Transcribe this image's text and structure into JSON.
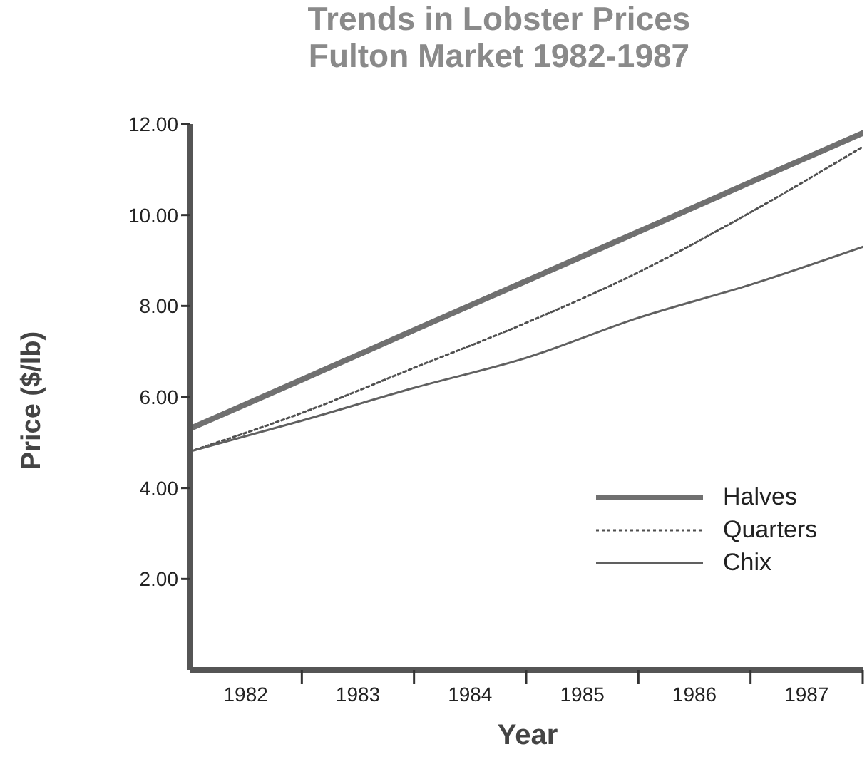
{
  "chart_data": {
    "type": "line",
    "title": "Trends in Lobster Prices",
    "subtitle": "Fulton Market  1982-1987",
    "xlabel": "Year",
    "ylabel": "Price ($/lb)",
    "x": [
      1982,
      1983,
      1984,
      1985,
      1986,
      1987,
      1988
    ],
    "series": [
      {
        "name": "Halves",
        "color": "#707070",
        "line_style": "solid",
        "values": [
          5.3,
          6.38,
          7.47,
          8.55,
          9.63,
          10.72,
          11.8
        ]
      },
      {
        "name": "Quarters",
        "color": "#505050",
        "line_style": "dotted",
        "values": [
          4.8,
          5.65,
          6.64,
          7.63,
          8.74,
          10.06,
          11.5
        ]
      },
      {
        "name": "Chix",
        "color": "#606060",
        "line_style": "solid",
        "values": [
          4.8,
          5.48,
          6.2,
          6.86,
          7.74,
          8.47,
          9.3
        ]
      }
    ],
    "xlim": [
      1982,
      1988
    ],
    "xticks": [
      {
        "value": 1982.5,
        "label": "1982"
      },
      {
        "value": 1983,
        "label": null
      },
      {
        "value": 1983.5,
        "label": "1983"
      },
      {
        "value": 1984,
        "label": null
      },
      {
        "value": 1984.5,
        "label": "1984"
      },
      {
        "value": 1985,
        "label": null
      },
      {
        "value": 1985.5,
        "label": "1985"
      },
      {
        "value": 1986,
        "label": null
      },
      {
        "value": 1986.5,
        "label": "1986"
      },
      {
        "value": 1987,
        "label": null
      },
      {
        "value": 1987.5,
        "label": "1987"
      },
      {
        "value": 1988,
        "label": null
      }
    ],
    "ylim": [
      0,
      12
    ],
    "yticks": [
      {
        "value": 2,
        "label": "2.00"
      },
      {
        "value": 4,
        "label": "4.00"
      },
      {
        "value": 6,
        "label": "6.00"
      },
      {
        "value": 8,
        "label": "8.00"
      },
      {
        "value": 10,
        "label": "10.00"
      },
      {
        "value": 12,
        "label": "12.00"
      }
    ],
    "grid": false,
    "legend": "bottom right",
    "marker": "none"
  }
}
